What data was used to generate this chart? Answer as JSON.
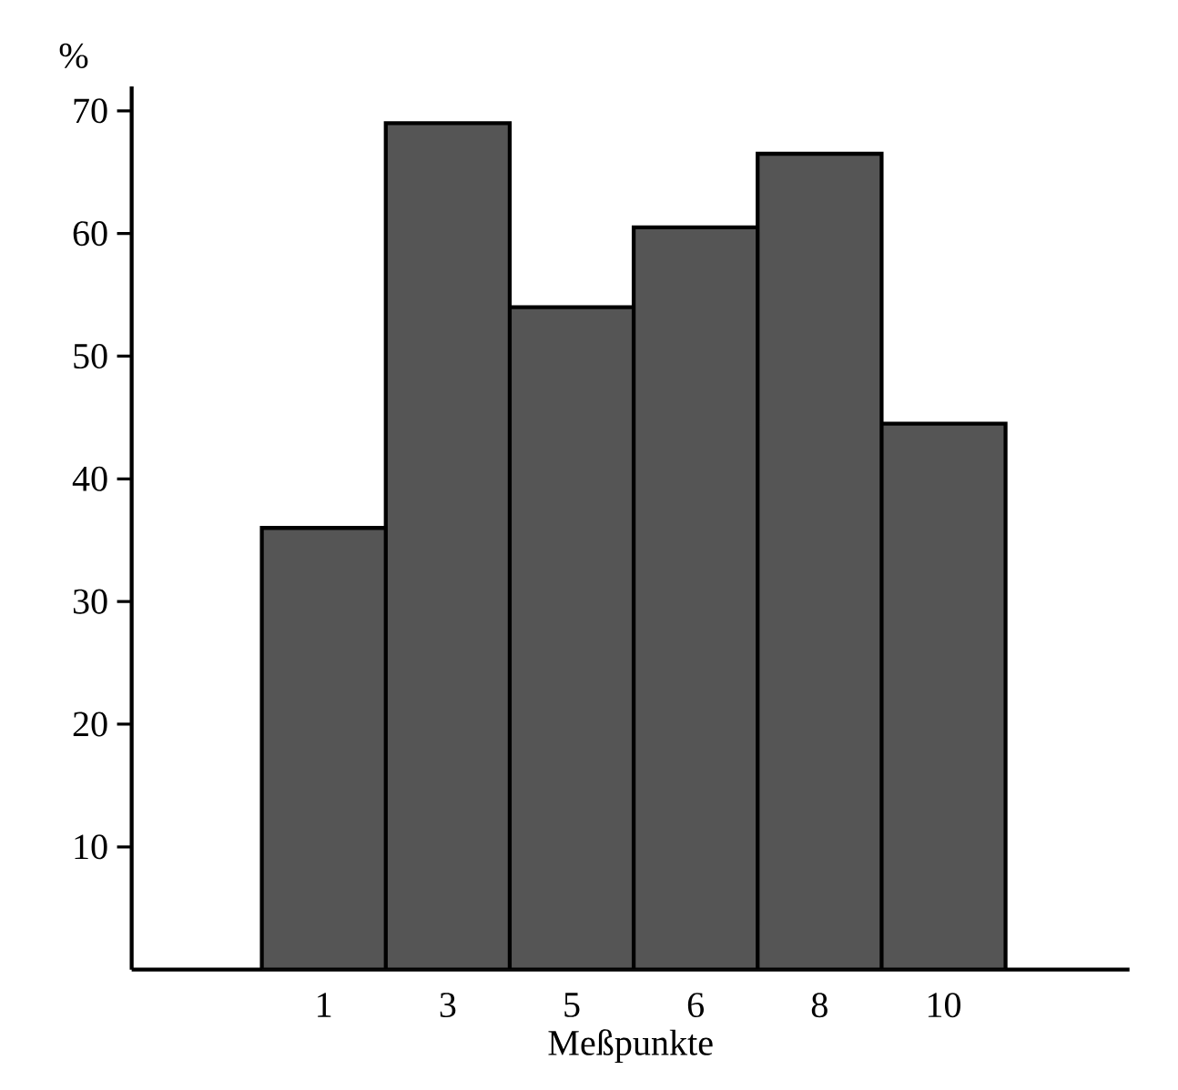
{
  "chart_data": {
    "type": "bar",
    "categories": [
      "1",
      "3",
      "5",
      "6",
      "8",
      "10"
    ],
    "values": [
      36,
      69,
      54,
      60.5,
      66.5,
      44.5
    ],
    "color": "#555555",
    "xlabel": "Meßpunkte",
    "ylabel": "%",
    "ylim": [
      0,
      70
    ],
    "yticks": [
      10,
      20,
      30,
      40,
      50,
      60,
      70
    ],
    "grid": false
  }
}
